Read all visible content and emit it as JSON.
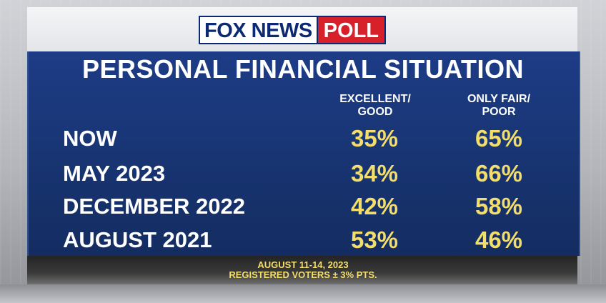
{
  "brand": {
    "part1": "FOX NEWS",
    "part2": "POLL"
  },
  "colors": {
    "panel": "#1d3c86",
    "value": "#f3dd6b",
    "label": "#ffffff",
    "brand_red": "#d8202a",
    "brand_blue": "#0b2a73"
  },
  "chart_data": {
    "type": "table",
    "title": "PERSONAL FINANCIAL SITUATION",
    "columns": [
      "EXCELLENT/\nGOOD",
      "ONLY FAIR/\nPOOR"
    ],
    "rows": [
      {
        "label": "NOW",
        "values": [
          "35%",
          "65%"
        ]
      },
      {
        "label": "MAY 2023",
        "values": [
          "34%",
          "66%"
        ]
      },
      {
        "label": "DECEMBER 2022",
        "values": [
          "42%",
          "58%"
        ]
      },
      {
        "label": "AUGUST 2021",
        "values": [
          "53%",
          "46%"
        ]
      }
    ]
  },
  "footer": {
    "line1": "AUGUST 11-14, 2023",
    "line2": "REGISTERED VOTERS ± 3% PTS."
  }
}
